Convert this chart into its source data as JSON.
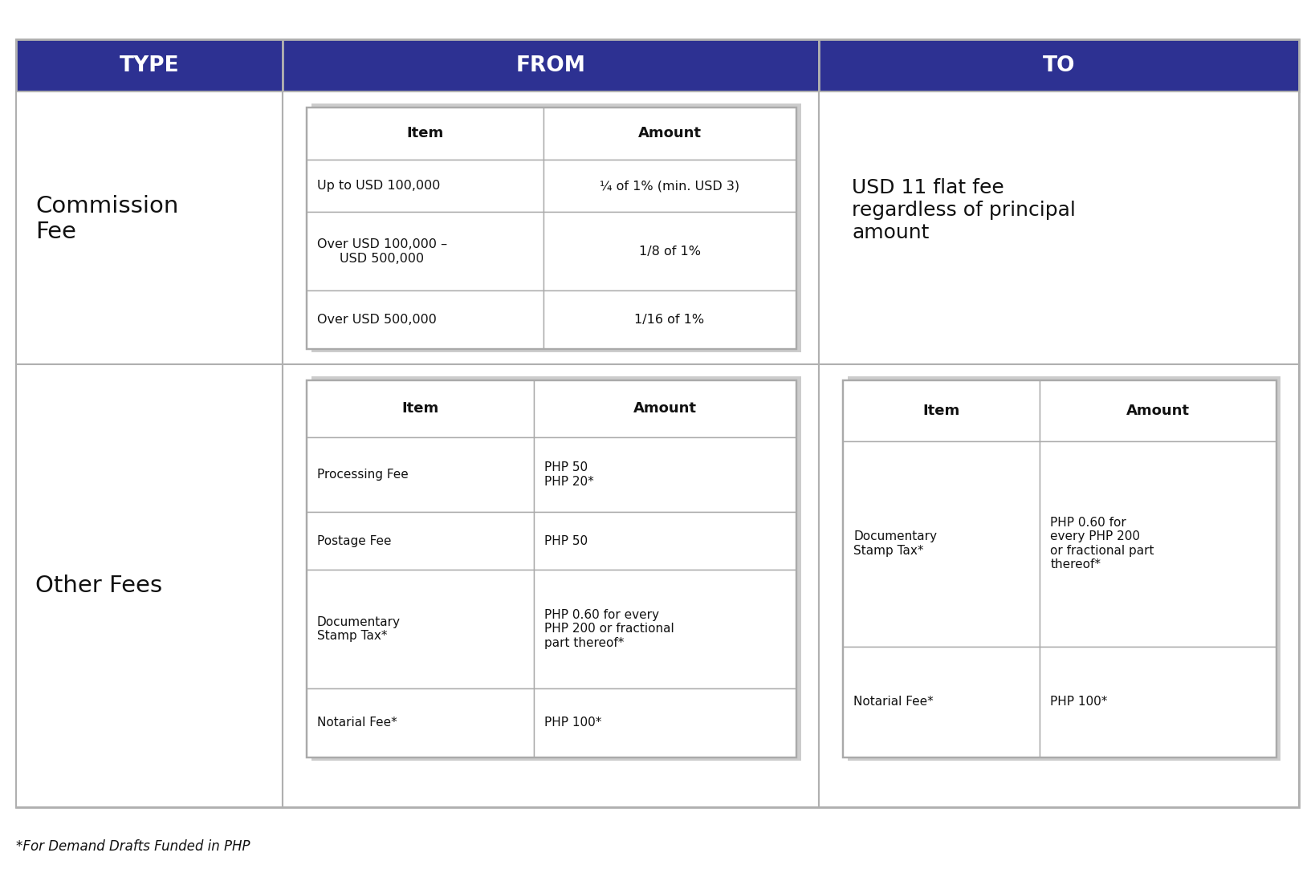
{
  "header_bg": "#2d3192",
  "header_text_color": "#ffffff",
  "outer_bg": "#ffffff",
  "inner_table_border": "#aaaaaa",
  "outer_border": "#b0b0b0",
  "text_color": "#111111",
  "footnote": "*For Demand Drafts Funded in PHP",
  "headers": [
    "TYPE",
    "FROM",
    "TO"
  ],
  "commission_type": "Commission\nFee",
  "commission_to": "USD 11 flat fee\nregardless of principal\namount",
  "commission_from_headers": [
    "Item",
    "Amount"
  ],
  "commission_from_rows": [
    [
      "Up to USD 100,000",
      "¼ of 1% (min. USD 3)"
    ],
    [
      "Over USD 100,000 –\nUSD 500,000",
      "1/8 of 1%"
    ],
    [
      "Over USD 500,000",
      "1/16 of 1%"
    ]
  ],
  "other_type": "Other Fees",
  "other_from_headers": [
    "Item",
    "Amount"
  ],
  "other_from_rows": [
    [
      "Processing Fee",
      "PHP 50\nPHP 20*"
    ],
    [
      "Postage Fee",
      "PHP 50"
    ],
    [
      "Documentary\nStamp Tax*",
      "PHP 0.60 for every\nPHP 200 or fractional\npart thereof*"
    ],
    [
      "Notarial Fee*",
      "PHP 100*"
    ]
  ],
  "other_to_headers": [
    "Item",
    "Amount"
  ],
  "other_to_rows": [
    [
      "Documentary\nStamp Tax*",
      "PHP 0.60 for\nevery PHP 200\nor fractional part\nthereof*"
    ],
    [
      "Notarial Fee*",
      "PHP 100*"
    ]
  ]
}
